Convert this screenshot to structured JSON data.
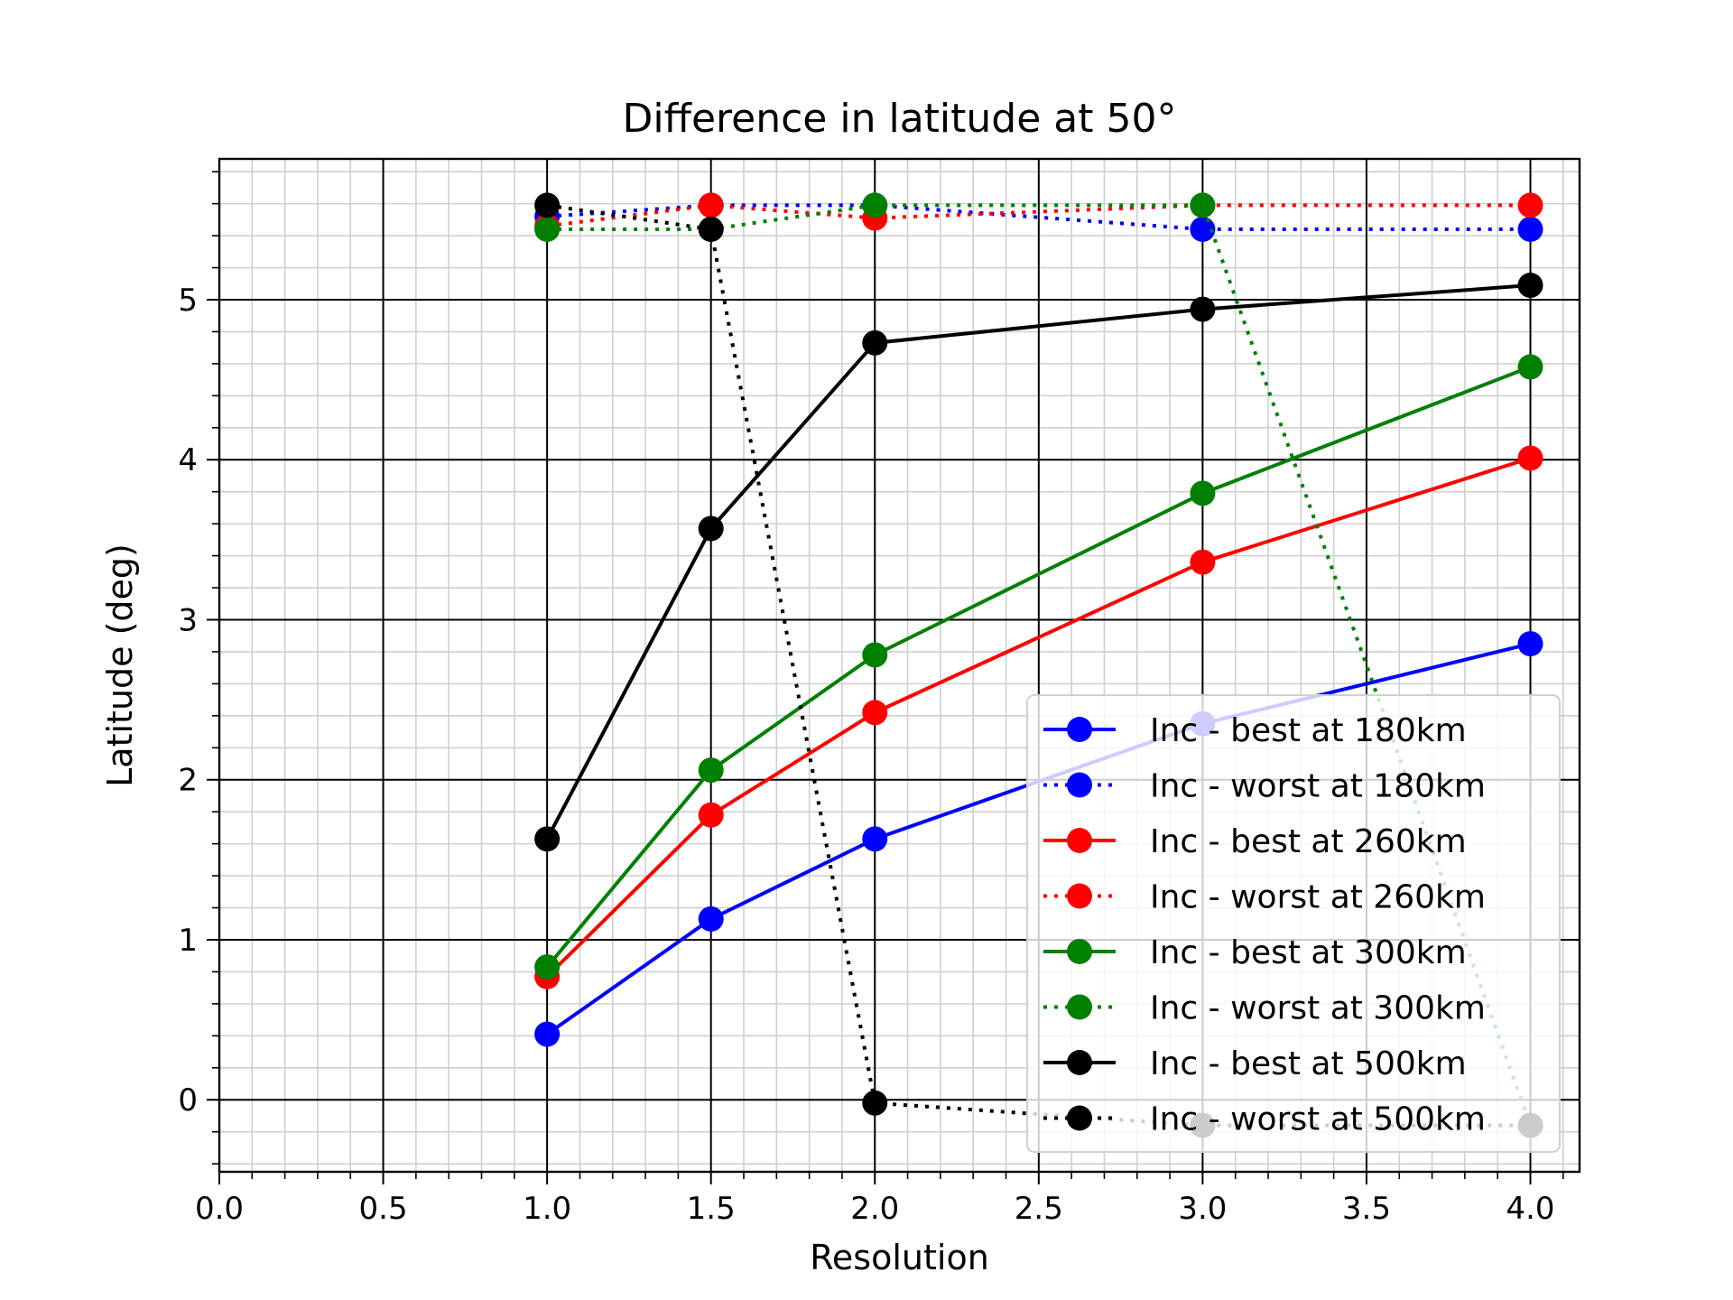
{
  "chart_data": {
    "type": "line",
    "title": "Difference in latitude at 50°",
    "xlabel": "Resolution",
    "ylabel": "Latitude (deg)",
    "xlim": [
      0.0,
      4.15
    ],
    "ylim": [
      -0.45,
      5.88
    ],
    "xticks": [
      0.0,
      0.5,
      1.0,
      1.5,
      2.0,
      2.5,
      3.0,
      3.5,
      4.0
    ],
    "xtick_labels": [
      "0.0",
      "0.5",
      "1.0",
      "1.5",
      "2.0",
      "2.5",
      "3.0",
      "3.5",
      "4.0"
    ],
    "yticks": [
      0,
      1,
      2,
      3,
      4,
      5
    ],
    "ytick_labels": [
      "0",
      "1",
      "2",
      "3",
      "4",
      "5"
    ],
    "grid": "major and minor",
    "legend_position": "lower-right",
    "x": [
      1.0,
      1.5,
      2.0,
      3.0,
      4.0
    ],
    "series": [
      {
        "name": "Inc - best at 180km",
        "color": "#0000ff",
        "linestyle": "solid",
        "values": [
          0.41,
          1.13,
          1.63,
          2.35,
          2.85
        ]
      },
      {
        "name": "Inc - worst at 180km",
        "color": "#0000ff",
        "linestyle": "dotted",
        "values": [
          5.52,
          5.59,
          5.59,
          5.44,
          5.44
        ]
      },
      {
        "name": "Inc - best at 260km",
        "color": "#ff0000",
        "linestyle": "solid",
        "values": [
          0.77,
          1.78,
          2.42,
          3.36,
          4.01
        ]
      },
      {
        "name": "Inc - worst at 260km",
        "color": "#ff0000",
        "linestyle": "dotted",
        "values": [
          5.46,
          5.59,
          5.51,
          5.59,
          5.59
        ]
      },
      {
        "name": "Inc - best at 300km",
        "color": "#008000",
        "linestyle": "solid",
        "values": [
          0.83,
          2.06,
          2.78,
          3.79,
          4.58
        ]
      },
      {
        "name": "Inc - worst at 300km",
        "color": "#008000",
        "linestyle": "dotted",
        "values": [
          5.44,
          5.44,
          5.59,
          5.59,
          -0.16
        ]
      },
      {
        "name": "Inc - best at 500km",
        "color": "#000000",
        "linestyle": "solid",
        "values": [
          1.63,
          3.57,
          4.73,
          4.94,
          5.09
        ]
      },
      {
        "name": "Inc - worst at 500km",
        "color": "#000000",
        "linestyle": "dotted",
        "values": [
          5.59,
          5.44,
          -0.02,
          -0.16,
          -0.16
        ]
      }
    ]
  }
}
